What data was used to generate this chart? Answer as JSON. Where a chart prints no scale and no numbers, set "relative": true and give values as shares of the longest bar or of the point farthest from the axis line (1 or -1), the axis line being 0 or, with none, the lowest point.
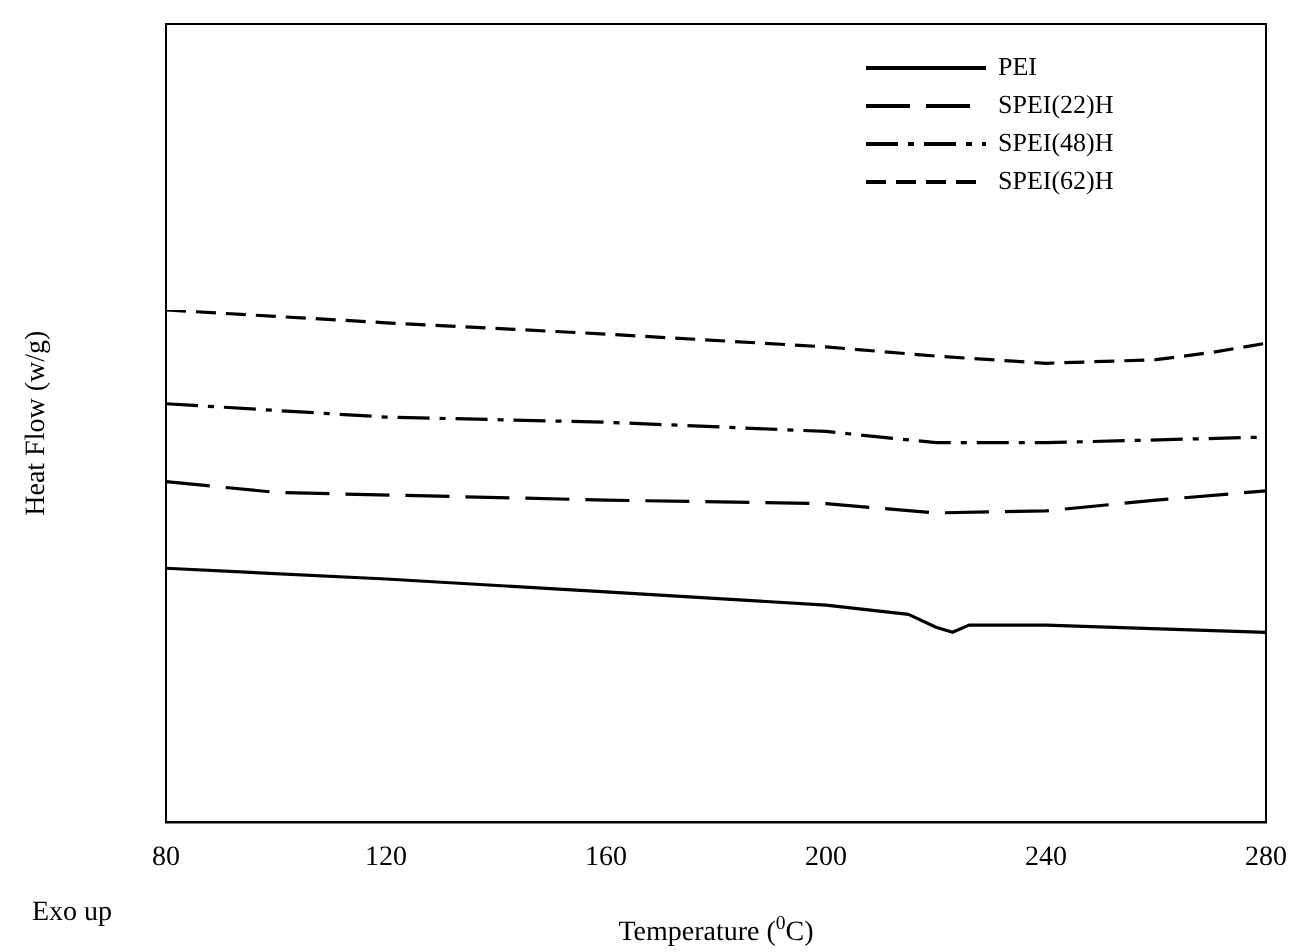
{
  "chart_data": {
    "type": "line",
    "relative": true,
    "xlabel": "Temperature ($^{0}$C)",
    "ylabel": "Heat Flow (w/g)",
    "annotations": [
      "Exo up"
    ],
    "xlim": [
      80,
      280
    ],
    "xticks": [
      80,
      120,
      160,
      200,
      240,
      280
    ],
    "grid": false,
    "legend": "top right",
    "marker": "none",
    "series": [
      {
        "name": "PEI",
        "color": "#000000",
        "line_style": "solid",
        "x": [
          80,
          120,
          160,
          200,
          215,
          220,
          223,
          226,
          240,
          280
        ],
        "values": [
          0.496,
          0.475,
          0.45,
          0.424,
          0.406,
          0.381,
          0.371,
          0.385,
          0.385,
          0.371
        ]
      },
      {
        "name": "SPEI(22)H",
        "color": "#000000",
        "line_style": "dashed",
        "x": [
          80,
          100,
          160,
          200,
          220,
          240,
          260,
          280
        ],
        "values": [
          0.665,
          0.644,
          0.629,
          0.622,
          0.604,
          0.608,
          0.629,
          0.647
        ]
      },
      {
        "name": "SPEI(48)H",
        "color": "#000000",
        "line_style": "dashdot",
        "x": [
          80,
          120,
          160,
          200,
          220,
          240,
          280
        ],
        "values": [
          0.817,
          0.791,
          0.781,
          0.763,
          0.741,
          0.741,
          0.752
        ]
      },
      {
        "name": "SPEI(62)H",
        "color": "#000000",
        "line_style": "shortdash",
        "x": [
          80,
          120,
          160,
          200,
          220,
          240,
          260,
          270,
          280
        ],
        "values": [
          1,
          0.975,
          0.953,
          0.928,
          0.91,
          0.896,
          0.903,
          0.917,
          0.935
        ]
      }
    ]
  }
}
